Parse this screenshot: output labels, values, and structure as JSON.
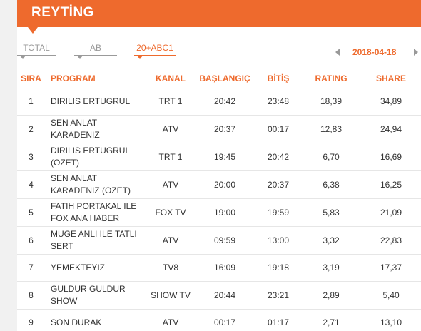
{
  "header": {
    "title": "REYTİNG"
  },
  "tabs": [
    {
      "label": "TOTAL",
      "active": false
    },
    {
      "label": "AB",
      "active": false
    },
    {
      "label": "20+ABC1",
      "active": true
    }
  ],
  "date_nav": {
    "date": "2018-04-18"
  },
  "table": {
    "columns": [
      "SIRA",
      "PROGRAM",
      "KANAL",
      "BAŞLANGIÇ",
      "BİTİŞ",
      "RATING",
      "SHARE"
    ],
    "rows": [
      {
        "rank": "1",
        "program": "DIRILIS ERTUGRUL",
        "channel": "TRT 1",
        "start": "20:42",
        "end": "23:48",
        "rating": "18,39",
        "share": "34,89"
      },
      {
        "rank": "2",
        "program": "SEN ANLAT KARADENIZ",
        "channel": "ATV",
        "start": "20:37",
        "end": "00:17",
        "rating": "12,83",
        "share": "24,94"
      },
      {
        "rank": "3",
        "program": "DIRILIS ERTUGRUL (OZET)",
        "channel": "TRT 1",
        "start": "19:45",
        "end": "20:42",
        "rating": "6,70",
        "share": "16,69"
      },
      {
        "rank": "4",
        "program": "SEN ANLAT KARADENIZ (OZET)",
        "channel": "ATV",
        "start": "20:00",
        "end": "20:37",
        "rating": "6,38",
        "share": "16,25"
      },
      {
        "rank": "5",
        "program": "FATIH PORTAKAL ILE FOX ANA HABER",
        "channel": "FOX TV",
        "start": "19:00",
        "end": "19:59",
        "rating": "5,83",
        "share": "21,09"
      },
      {
        "rank": "6",
        "program": "MUGE ANLI ILE TATLI SERT",
        "channel": "ATV",
        "start": "09:59",
        "end": "13:00",
        "rating": "3,32",
        "share": "22,83"
      },
      {
        "rank": "7",
        "program": "YEMEKTEYIZ",
        "channel": "TV8",
        "start": "16:09",
        "end": "19:18",
        "rating": "3,19",
        "share": "17,37"
      },
      {
        "rank": "8",
        "program": "GULDUR GULDUR SHOW",
        "channel": "SHOW TV",
        "start": "20:44",
        "end": "23:21",
        "rating": "2,89",
        "share": "5,40"
      },
      {
        "rank": "9",
        "program": "SON DURAK",
        "channel": "ATV",
        "start": "00:17",
        "end": "01:17",
        "rating": "2,71",
        "share": "13,10"
      }
    ]
  },
  "colors": {
    "accent": "#ee6a2d",
    "text": "#333333",
    "muted": "#9a9a9a"
  }
}
